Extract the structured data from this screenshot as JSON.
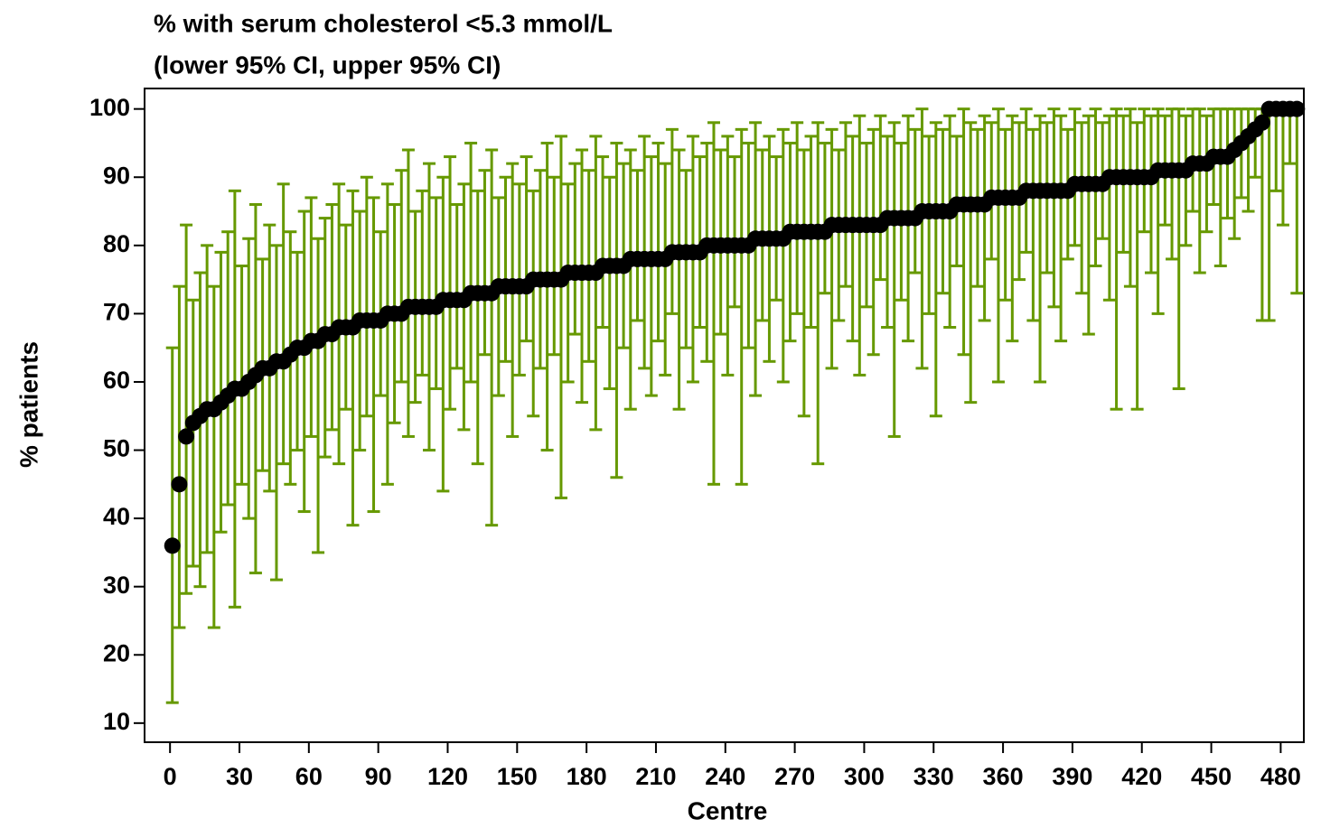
{
  "chart_data": {
    "type": "errorbar",
    "title": "% with serum cholesterol <5.3 mmol/L",
    "subtitle": "(lower 95% CI, upper 95% CI)",
    "x_label": "Centre",
    "y_label": "% patients",
    "xlim": [
      -11,
      490
    ],
    "ylim": [
      7.2,
      103
    ],
    "xticks": [
      0,
      30,
      60,
      90,
      120,
      150,
      180,
      210,
      240,
      270,
      300,
      330,
      360,
      390,
      420,
      450,
      480
    ],
    "yticks": [
      10,
      20,
      30,
      40,
      50,
      60,
      70,
      80,
      90,
      100
    ],
    "grid": false,
    "point_color": "#000000",
    "bar_color": "#669900",
    "x": [
      1,
      4,
      7,
      10,
      13,
      16,
      19,
      22,
      25,
      28,
      31,
      34,
      37,
      40,
      43,
      46,
      49,
      52,
      55,
      58,
      61,
      64,
      67,
      70,
      73,
      76,
      79,
      82,
      85,
      88,
      91,
      94,
      97,
      100,
      103,
      106,
      109,
      112,
      115,
      118,
      121,
      124,
      127,
      130,
      133,
      136,
      139,
      142,
      145,
      148,
      151,
      154,
      157,
      160,
      163,
      166,
      169,
      172,
      175,
      178,
      181,
      184,
      187,
      190,
      193,
      196,
      199,
      202,
      205,
      208,
      211,
      214,
      217,
      220,
      223,
      226,
      229,
      232,
      235,
      238,
      241,
      244,
      247,
      250,
      253,
      256,
      259,
      262,
      265,
      268,
      271,
      274,
      277,
      280,
      283,
      286,
      289,
      292,
      295,
      298,
      301,
      304,
      307,
      310,
      313,
      316,
      319,
      322,
      325,
      328,
      331,
      334,
      337,
      340,
      343,
      346,
      349,
      352,
      355,
      358,
      361,
      364,
      367,
      370,
      373,
      376,
      379,
      382,
      385,
      388,
      391,
      394,
      397,
      400,
      403,
      406,
      409,
      412,
      415,
      418,
      421,
      424,
      427,
      430,
      433,
      436,
      439,
      442,
      445,
      448,
      451,
      454,
      457,
      460,
      463,
      466,
      469,
      472,
      475,
      478,
      481,
      484,
      487
    ],
    "values": [
      36,
      45,
      52,
      54,
      55,
      56,
      56,
      57,
      58,
      59,
      59,
      60,
      61,
      62,
      62,
      63,
      63,
      64,
      65,
      65,
      66,
      66,
      67,
      67,
      68,
      68,
      68,
      69,
      69,
      69,
      69,
      70,
      70,
      70,
      71,
      71,
      71,
      71,
      71,
      72,
      72,
      72,
      72,
      73,
      73,
      73,
      73,
      74,
      74,
      74,
      74,
      74,
      75,
      75,
      75,
      75,
      75,
      76,
      76,
      76,
      76,
      76,
      77,
      77,
      77,
      77,
      78,
      78,
      78,
      78,
      78,
      78,
      79,
      79,
      79,
      79,
      79,
      80,
      80,
      80,
      80,
      80,
      80,
      80,
      81,
      81,
      81,
      81,
      81,
      82,
      82,
      82,
      82,
      82,
      82,
      83,
      83,
      83,
      83,
      83,
      83,
      83,
      83,
      84,
      84,
      84,
      84,
      84,
      85,
      85,
      85,
      85,
      85,
      86,
      86,
      86,
      86,
      86,
      87,
      87,
      87,
      87,
      87,
      88,
      88,
      88,
      88,
      88,
      88,
      88,
      89,
      89,
      89,
      89,
      89,
      90,
      90,
      90,
      90,
      90,
      90,
      90,
      91,
      91,
      91,
      91,
      91,
      92,
      92,
      92,
      93,
      93,
      93,
      94,
      95,
      96,
      97,
      98,
      100,
      100,
      100,
      100,
      100
    ],
    "lower": [
      13,
      24,
      29,
      33,
      30,
      35,
      24,
      38,
      42,
      27,
      45,
      40,
      32,
      47,
      44,
      31,
      48,
      45,
      50,
      41,
      52,
      35,
      49,
      53,
      48,
      56,
      39,
      50,
      55,
      41,
      58,
      45,
      54,
      60,
      52,
      57,
      61,
      50,
      59,
      44,
      56,
      62,
      53,
      60,
      48,
      64,
      39,
      58,
      63,
      52,
      61,
      66,
      55,
      62,
      50,
      64,
      43,
      60,
      67,
      57,
      63,
      53,
      68,
      59,
      46,
      65,
      56,
      69,
      62,
      58,
      66,
      61,
      70,
      56,
      65,
      60,
      68,
      63,
      45,
      67,
      61,
      71,
      45,
      65,
      58,
      69,
      63,
      72,
      60,
      66,
      70,
      55,
      68,
      48,
      73,
      62,
      69,
      74,
      66,
      61,
      71,
      64,
      75,
      68,
      52,
      72,
      66,
      76,
      62,
      70,
      55,
      73,
      68,
      77,
      64,
      57,
      74,
      69,
      78,
      60,
      72,
      66,
      75,
      79,
      69,
      60,
      76,
      71,
      66,
      78,
      80,
      73,
      67,
      77,
      81,
      72,
      56,
      79,
      74,
      56,
      82,
      76,
      70,
      83,
      78,
      59,
      80,
      85,
      76,
      82,
      86,
      77,
      84,
      81,
      87,
      85,
      90,
      69,
      69,
      88,
      83,
      92,
      73
    ],
    "upper": [
      65,
      74,
      83,
      72,
      76,
      80,
      74,
      79,
      82,
      88,
      77,
      81,
      86,
      78,
      83,
      80,
      89,
      82,
      79,
      85,
      87,
      81,
      84,
      86,
      89,
      83,
      88,
      85,
      90,
      87,
      82,
      89,
      86,
      91,
      94,
      85,
      88,
      92,
      87,
      90,
      93,
      86,
      89,
      95,
      88,
      91,
      94,
      87,
      90,
      92,
      89,
      93,
      88,
      91,
      95,
      90,
      96,
      89,
      92,
      94,
      91,
      96,
      93,
      90,
      95,
      92,
      94,
      91,
      96,
      93,
      95,
      92,
      97,
      94,
      91,
      96,
      93,
      95,
      98,
      94,
      96,
      93,
      97,
      95,
      98,
      94,
      96,
      93,
      97,
      95,
      98,
      94,
      96,
      98,
      95,
      97,
      94,
      98,
      96,
      99,
      95,
      97,
      99,
      96,
      98,
      95,
      99,
      97,
      100,
      96,
      98,
      97,
      99,
      96,
      100,
      98,
      97,
      99,
      98,
      100,
      97,
      99,
      98,
      100,
      97,
      99,
      98,
      100,
      99,
      97,
      100,
      98,
      99,
      100,
      98,
      99,
      100,
      99,
      100,
      98,
      100,
      99,
      100,
      99,
      100,
      100,
      99,
      100,
      100,
      99,
      100,
      100,
      100,
      100,
      100,
      100,
      100,
      100,
      100,
      100,
      100,
      100,
      100
    ]
  }
}
